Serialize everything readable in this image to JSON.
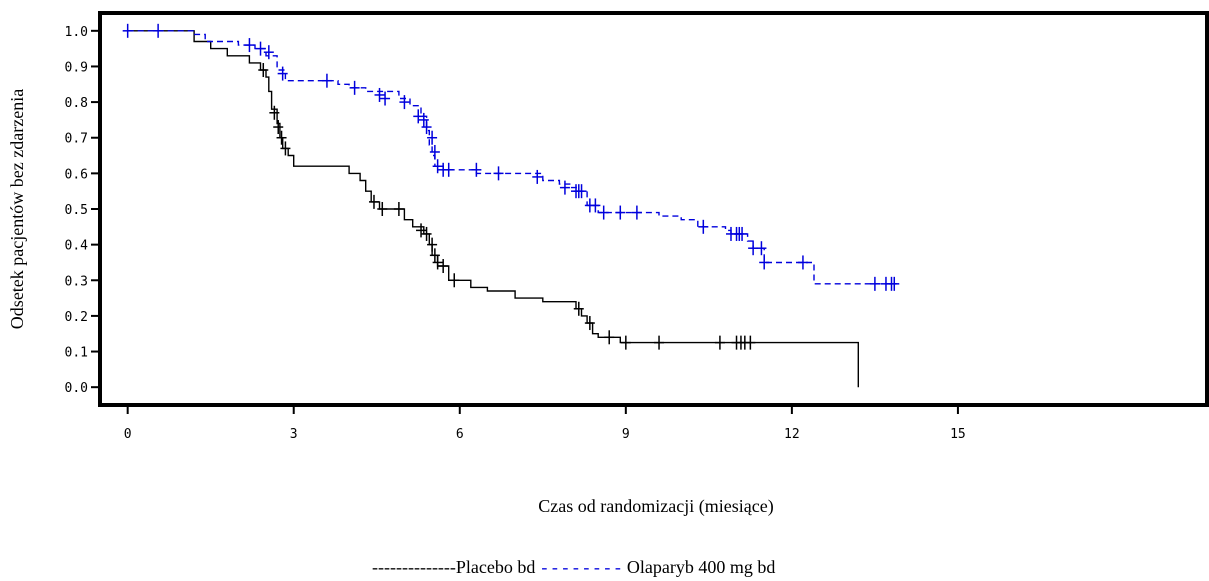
{
  "chart_data": {
    "type": "line",
    "title": "",
    "xlabel": "Czas od randomizacji (miesiące)",
    "ylabel": "Odsetek pacjentów bez zdarzenia",
    "xlim": [
      -0.5,
      19.5
    ],
    "ylim": [
      -0.05,
      1.05
    ],
    "x_ticks": [
      "0",
      "3",
      "6",
      "9",
      "12",
      "15"
    ],
    "x_tick_values": [
      0,
      3,
      6,
      9,
      12,
      15
    ],
    "y_ticks": [
      "0.0",
      "0.1",
      "0.2",
      "0.3",
      "0.4",
      "0.5",
      "0.6",
      "0.7",
      "0.8",
      "0.9",
      "1.0"
    ],
    "y_tick_values": [
      0.0,
      0.1,
      0.2,
      0.3,
      0.4,
      0.5,
      0.6,
      0.7,
      0.8,
      0.9,
      1.0
    ],
    "series": [
      {
        "name": "Placebo bd",
        "legend_line": "--------------",
        "color": "#000000",
        "style": "solid",
        "steps": [
          [
            0,
            1.0
          ],
          [
            1.2,
            0.97
          ],
          [
            1.5,
            0.95
          ],
          [
            1.8,
            0.93
          ],
          [
            2.2,
            0.91
          ],
          [
            2.4,
            0.89
          ],
          [
            2.5,
            0.87
          ],
          [
            2.55,
            0.83
          ],
          [
            2.6,
            0.78
          ],
          [
            2.7,
            0.74
          ],
          [
            2.75,
            0.7
          ],
          [
            2.8,
            0.67
          ],
          [
            2.9,
            0.65
          ],
          [
            3.0,
            0.62
          ],
          [
            4.0,
            0.6
          ],
          [
            4.2,
            0.58
          ],
          [
            4.3,
            0.55
          ],
          [
            4.4,
            0.52
          ],
          [
            4.55,
            0.5
          ],
          [
            5.0,
            0.47
          ],
          [
            5.15,
            0.45
          ],
          [
            5.35,
            0.43
          ],
          [
            5.45,
            0.4
          ],
          [
            5.5,
            0.37
          ],
          [
            5.6,
            0.34
          ],
          [
            5.8,
            0.3
          ],
          [
            6.2,
            0.28
          ],
          [
            6.5,
            0.27
          ],
          [
            7.0,
            0.25
          ],
          [
            7.5,
            0.24
          ],
          [
            8.1,
            0.22
          ],
          [
            8.2,
            0.2
          ],
          [
            8.3,
            0.18
          ],
          [
            8.4,
            0.15
          ],
          [
            8.5,
            0.14
          ],
          [
            8.9,
            0.125
          ],
          [
            13.2,
            0.125
          ],
          [
            13.2,
            0.0
          ]
        ],
        "censored": [
          [
            2.45,
            0.89
          ],
          [
            2.65,
            0.77
          ],
          [
            2.72,
            0.73
          ],
          [
            2.78,
            0.7
          ],
          [
            2.85,
            0.67
          ],
          [
            4.45,
            0.52
          ],
          [
            4.6,
            0.5
          ],
          [
            4.9,
            0.5
          ],
          [
            5.3,
            0.44
          ],
          [
            5.4,
            0.43
          ],
          [
            5.5,
            0.4
          ],
          [
            5.55,
            0.37
          ],
          [
            5.6,
            0.35
          ],
          [
            5.7,
            0.34
          ],
          [
            5.9,
            0.3
          ],
          [
            8.15,
            0.22
          ],
          [
            8.35,
            0.18
          ],
          [
            8.7,
            0.14
          ],
          [
            9.0,
            0.125
          ],
          [
            9.6,
            0.125
          ],
          [
            10.7,
            0.125
          ],
          [
            11.0,
            0.125
          ],
          [
            11.08,
            0.125
          ],
          [
            11.15,
            0.125
          ],
          [
            11.25,
            0.125
          ]
        ]
      },
      {
        "name": "Olaparyb 400 mg bd",
        "legend_line": "- - - - - - - -",
        "color": "#0000dd",
        "style": "dashed",
        "steps": [
          [
            0,
            1.0
          ],
          [
            1.2,
            0.99
          ],
          [
            1.4,
            0.97
          ],
          [
            2.0,
            0.96
          ],
          [
            2.3,
            0.95
          ],
          [
            2.5,
            0.93
          ],
          [
            2.7,
            0.89
          ],
          [
            2.85,
            0.86
          ],
          [
            3.8,
            0.85
          ],
          [
            4.0,
            0.84
          ],
          [
            4.3,
            0.83
          ],
          [
            4.9,
            0.81
          ],
          [
            5.1,
            0.79
          ],
          [
            5.3,
            0.76
          ],
          [
            5.4,
            0.72
          ],
          [
            5.45,
            0.68
          ],
          [
            5.5,
            0.65
          ],
          [
            5.55,
            0.62
          ],
          [
            5.7,
            0.61
          ],
          [
            6.3,
            0.6
          ],
          [
            7.5,
            0.58
          ],
          [
            7.8,
            0.57
          ],
          [
            8.0,
            0.56
          ],
          [
            8.15,
            0.55
          ],
          [
            8.3,
            0.51
          ],
          [
            8.5,
            0.49
          ],
          [
            9.6,
            0.48
          ],
          [
            10.0,
            0.47
          ],
          [
            10.3,
            0.45
          ],
          [
            10.8,
            0.44
          ],
          [
            10.9,
            0.43
          ],
          [
            11.2,
            0.41
          ],
          [
            11.3,
            0.39
          ],
          [
            11.5,
            0.35
          ],
          [
            12.4,
            0.29
          ],
          [
            13.9,
            0.29
          ]
        ],
        "censored": [
          [
            0.0,
            1.0
          ],
          [
            0.55,
            1.0
          ],
          [
            2.2,
            0.96
          ],
          [
            2.4,
            0.95
          ],
          [
            2.55,
            0.94
          ],
          [
            2.8,
            0.88
          ],
          [
            3.6,
            0.86
          ],
          [
            4.1,
            0.84
          ],
          [
            4.55,
            0.82
          ],
          [
            4.65,
            0.81
          ],
          [
            5.0,
            0.8
          ],
          [
            5.25,
            0.76
          ],
          [
            5.35,
            0.75
          ],
          [
            5.4,
            0.73
          ],
          [
            5.5,
            0.7
          ],
          [
            5.55,
            0.66
          ],
          [
            5.6,
            0.62
          ],
          [
            5.7,
            0.61
          ],
          [
            5.8,
            0.61
          ],
          [
            6.3,
            0.61
          ],
          [
            6.7,
            0.6
          ],
          [
            7.4,
            0.59
          ],
          [
            7.9,
            0.56
          ],
          [
            8.1,
            0.55
          ],
          [
            8.15,
            0.55
          ],
          [
            8.2,
            0.55
          ],
          [
            8.35,
            0.51
          ],
          [
            8.45,
            0.51
          ],
          [
            8.6,
            0.49
          ],
          [
            8.9,
            0.49
          ],
          [
            9.2,
            0.49
          ],
          [
            10.4,
            0.45
          ],
          [
            10.9,
            0.43
          ],
          [
            11.0,
            0.43
          ],
          [
            11.05,
            0.43
          ],
          [
            11.1,
            0.43
          ],
          [
            11.3,
            0.39
          ],
          [
            11.45,
            0.39
          ],
          [
            11.5,
            0.35
          ],
          [
            12.2,
            0.35
          ],
          [
            13.5,
            0.29
          ],
          [
            13.7,
            0.29
          ],
          [
            13.8,
            0.29
          ],
          [
            13.85,
            0.29
          ]
        ]
      }
    ],
    "grid": false,
    "legend_position": "bottom-center"
  }
}
